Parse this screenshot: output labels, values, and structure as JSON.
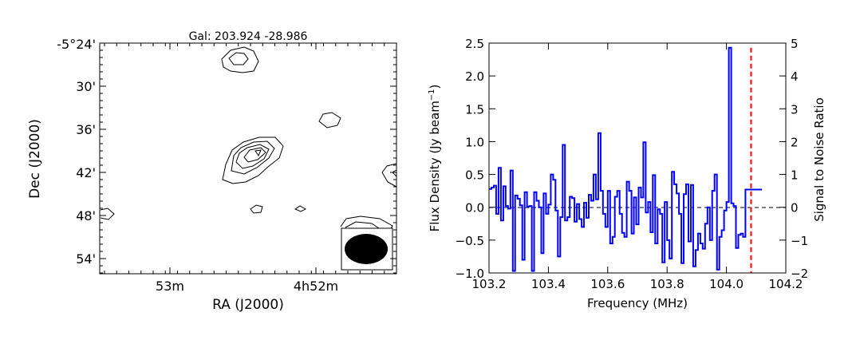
{
  "chart_data": [
    {
      "type": "contour",
      "title": "Gal: 203.924 -28.986",
      "xlabel": "RA (J2000)",
      "ylabel": "Dec (J2000)",
      "x_ticks": [
        "53m",
        "4h52m"
      ],
      "y_ticks": [
        "-5°24'",
        "30'",
        "36'",
        "42'",
        "48'",
        "54'"
      ],
      "beam": "filled ellipse in bottom-right box",
      "grid": false
    },
    {
      "type": "line",
      "drawstyle": "steps",
      "xlabel": "Frequency (MHz)",
      "ylabel": "Flux Density (Jy beam",
      "ylabel_superscript": "−1",
      "ylabel_suffix": ")",
      "ylabel_right": "Signal to Noise Ratio",
      "xlim": [
        103.2,
        104.2
      ],
      "ylim": [
        -1.0,
        2.5
      ],
      "ylim_right": [
        -2,
        5
      ],
      "x_ticks": [
        "103.2",
        "103.4",
        "103.6",
        "103.8",
        "104.0",
        "104.2"
      ],
      "y_ticks": [
        "−1.0",
        "−0.5",
        "0.0",
        "0.5",
        "1.0",
        "1.5",
        "2.0",
        "2.5"
      ],
      "y_ticks_right": [
        "−2",
        "−1",
        "0",
        "1",
        "2",
        "3",
        "4",
        "5"
      ],
      "zero_line": "dashed black",
      "marker_line": {
        "x": 104.083,
        "color": "#ff0000",
        "style": "dashed"
      },
      "series_color": "#0000ff",
      "x": [
        103.2,
        103.208,
        103.216,
        103.224,
        103.232,
        103.24,
        103.248,
        103.256,
        103.264,
        103.272,
        103.28,
        103.288,
        103.296,
        103.304,
        103.312,
        103.32,
        103.328,
        103.336,
        103.344,
        103.352,
        103.36,
        103.368,
        103.376,
        103.384,
        103.392,
        103.4,
        103.408,
        103.416,
        103.424,
        103.432,
        103.44,
        103.448,
        103.456,
        103.464,
        103.472,
        103.48,
        103.488,
        103.496,
        103.504,
        103.512,
        103.52,
        103.528,
        103.536,
        103.544,
        103.552,
        103.56,
        103.568,
        103.576,
        103.584,
        103.592,
        103.6,
        103.608,
        103.616,
        103.624,
        103.632,
        103.64,
        103.648,
        103.656,
        103.664,
        103.672,
        103.68,
        103.688,
        103.696,
        103.704,
        103.712,
        103.72,
        103.728,
        103.736,
        103.744,
        103.752,
        103.76,
        103.768,
        103.776,
        103.784,
        103.792,
        103.8,
        103.808,
        103.816,
        103.824,
        103.832,
        103.84,
        103.848,
        103.856,
        103.864,
        103.872,
        103.88,
        103.888,
        103.896,
        103.904,
        103.912,
        103.92,
        103.928,
        103.936,
        103.944,
        103.952,
        103.96,
        103.968,
        103.976,
        103.984,
        103.992,
        104.0,
        104.008,
        104.016,
        104.024,
        104.032,
        104.04,
        104.048,
        104.056,
        104.064,
        104.072,
        104.08,
        104.088,
        104.096,
        104.104,
        104.112
      ],
      "values": [
        0.28,
        0.3,
        0.33,
        -0.1,
        0.6,
        -0.2,
        0.32,
        0.02,
        -0.02,
        0.56,
        -0.97,
        0.18,
        0.13,
        0.03,
        -0.8,
        0.23,
        0.01,
        0.02,
        -0.97,
        0.23,
        0.1,
        0.0,
        -0.7,
        0.21,
        -0.1,
        0.04,
        0.5,
        0.42,
        -0.05,
        -0.75,
        -0.15,
        0.95,
        -0.2,
        -0.15,
        0.16,
        0.14,
        -0.22,
        0.05,
        -0.18,
        -0.3,
        0.07,
        -0.16,
        0.19,
        0.1,
        0.5,
        0.12,
        1.13,
        0.25,
        -0.1,
        -0.3,
        0.25,
        -0.55,
        -0.45,
        0.16,
        0.25,
        -0.1,
        -0.39,
        -0.45,
        0.39,
        0.25,
        -0.4,
        0.15,
        -0.26,
        0.3,
        0.15,
        0.99,
        -0.08,
        0.08,
        -0.38,
        0.49,
        -0.55,
        -0.03,
        -0.1,
        -0.84,
        0.08,
        -0.5,
        -0.78,
        0.54,
        0.35,
        0.21,
        -0.1,
        -0.85,
        0.2,
        0.35,
        -0.52,
        0.34,
        -0.9,
        -0.65,
        -0.4,
        -0.55,
        -0.63,
        -0.25,
        0.0,
        -0.5,
        0.25,
        0.5,
        -0.95,
        -0.45,
        -0.35,
        -0.05,
        0.08,
        2.43,
        0.06,
        0.02,
        -0.62,
        -0.42,
        -0.4,
        -0.45,
        0.27,
        0.27,
        0.27,
        0.27,
        0.27,
        0.27,
        0.27
      ]
    }
  ]
}
